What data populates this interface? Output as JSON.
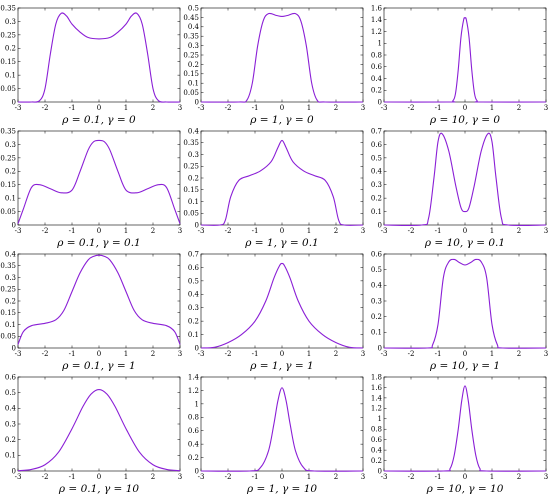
{
  "chart_data": [
    {
      "type": "line",
      "title": "",
      "xlabel": "ρ = 0.1, γ = 0",
      "ylabel": "",
      "xlim": [
        -3,
        3
      ],
      "ylim": [
        0,
        0.35
      ],
      "xticks": [
        -3,
        -2,
        -1,
        0,
        1,
        2,
        3
      ],
      "yticks": [
        0,
        0.05,
        0.1,
        0.15,
        0.2,
        0.25,
        0.3,
        0.35
      ],
      "x": [
        -3,
        -2.5,
        -2.2,
        -2.0,
        -1.8,
        -1.6,
        -1.4,
        -1.2,
        -1.0,
        -0.7,
        -0.4,
        0,
        0.4,
        0.7,
        1.0,
        1.2,
        1.4,
        1.6,
        1.8,
        2.0,
        2.2,
        2.5,
        3
      ],
      "y": [
        0,
        0,
        0.005,
        0.05,
        0.18,
        0.29,
        0.33,
        0.32,
        0.29,
        0.26,
        0.24,
        0.235,
        0.24,
        0.26,
        0.29,
        0.32,
        0.33,
        0.29,
        0.18,
        0.05,
        0.005,
        0,
        0
      ]
    },
    {
      "type": "line",
      "title": "",
      "xlabel": "ρ = 1, γ = 0",
      "ylabel": "",
      "xlim": [
        -3,
        3
      ],
      "ylim": [
        0,
        0.5
      ],
      "xticks": [
        -3,
        -2,
        -1,
        0,
        1,
        2,
        3
      ],
      "yticks": [
        0,
        0.05,
        0.1,
        0.15,
        0.2,
        0.25,
        0.3,
        0.35,
        0.4,
        0.45,
        0.5
      ],
      "x": [
        -3,
        -1.6,
        -1.3,
        -1.1,
        -0.9,
        -0.7,
        -0.5,
        -0.2,
        0,
        0.2,
        0.5,
        0.7,
        0.9,
        1.1,
        1.3,
        1.6,
        3
      ],
      "y": [
        0,
        0,
        0.01,
        0.1,
        0.3,
        0.43,
        0.47,
        0.46,
        0.455,
        0.46,
        0.47,
        0.43,
        0.3,
        0.1,
        0.01,
        0,
        0
      ]
    },
    {
      "type": "line",
      "title": "",
      "xlabel": "ρ = 10, γ = 0",
      "ylabel": "",
      "xlim": [
        -3,
        3
      ],
      "ylim": [
        0,
        1.6
      ],
      "xticks": [
        -3,
        -2,
        -1,
        0,
        1,
        2,
        3
      ],
      "yticks": [
        0,
        0.2,
        0.4,
        0.6,
        0.8,
        1.0,
        1.2,
        1.4,
        1.6
      ],
      "x": [
        -3,
        -0.6,
        -0.45,
        -0.35,
        -0.25,
        -0.15,
        -0.05,
        0,
        0.05,
        0.15,
        0.25,
        0.35,
        0.45,
        0.6,
        3
      ],
      "y": [
        0,
        0,
        0.02,
        0.15,
        0.55,
        1.1,
        1.4,
        1.43,
        1.4,
        1.1,
        0.55,
        0.15,
        0.02,
        0,
        0
      ]
    },
    {
      "type": "line",
      "title": "",
      "xlabel": "ρ = 0.1, γ = 0.1",
      "ylabel": "",
      "xlim": [
        -3,
        3
      ],
      "ylim": [
        0,
        0.35
      ],
      "xticks": [
        -3,
        -2,
        -1,
        0,
        1,
        2,
        3
      ],
      "yticks": [
        0,
        0.05,
        0.1,
        0.15,
        0.2,
        0.25,
        0.3,
        0.35
      ],
      "x": [
        -3,
        -2.8,
        -2.5,
        -2.2,
        -1.8,
        -1.4,
        -1.0,
        -0.7,
        -0.4,
        -0.2,
        0,
        0.2,
        0.4,
        0.7,
        1.0,
        1.4,
        1.8,
        2.2,
        2.5,
        2.8,
        3
      ],
      "y": [
        0.005,
        0.06,
        0.14,
        0.15,
        0.135,
        0.12,
        0.13,
        0.2,
        0.28,
        0.31,
        0.315,
        0.31,
        0.28,
        0.2,
        0.13,
        0.12,
        0.135,
        0.15,
        0.14,
        0.06,
        0.005
      ]
    },
    {
      "type": "line",
      "title": "",
      "xlabel": "ρ = 1, γ = 0.1",
      "ylabel": "",
      "xlim": [
        -3,
        3
      ],
      "ylim": [
        0,
        0.4
      ],
      "xticks": [
        -3,
        -2,
        -1,
        0,
        1,
        2,
        3
      ],
      "yticks": [
        0,
        0.05,
        0.1,
        0.15,
        0.2,
        0.25,
        0.3,
        0.35,
        0.4
      ],
      "x": [
        -3,
        -2.3,
        -2.1,
        -1.9,
        -1.6,
        -1.2,
        -0.8,
        -0.4,
        -0.15,
        0,
        0.15,
        0.4,
        0.8,
        1.2,
        1.6,
        1.9,
        2.1,
        2.3,
        3
      ],
      "y": [
        0,
        0,
        0.02,
        0.12,
        0.19,
        0.21,
        0.23,
        0.27,
        0.33,
        0.36,
        0.33,
        0.27,
        0.23,
        0.21,
        0.19,
        0.12,
        0.02,
        0,
        0
      ]
    },
    {
      "type": "line",
      "title": "",
      "xlabel": "ρ = 10, γ = 0.1",
      "ylabel": "",
      "xlim": [
        -3,
        3
      ],
      "ylim": [
        0,
        0.7
      ],
      "xticks": [
        -3,
        -2,
        -1,
        0,
        1,
        2,
        3
      ],
      "yticks": [
        0,
        0.1,
        0.2,
        0.3,
        0.4,
        0.5,
        0.6,
        0.7
      ],
      "x": [
        -3,
        -1.6,
        -1.35,
        -1.15,
        -1.0,
        -0.85,
        -0.6,
        -0.35,
        -0.15,
        0,
        0.15,
        0.35,
        0.6,
        0.85,
        1.0,
        1.15,
        1.35,
        1.6,
        3
      ],
      "y": [
        0,
        0,
        0.05,
        0.35,
        0.62,
        0.68,
        0.55,
        0.3,
        0.13,
        0.1,
        0.13,
        0.3,
        0.55,
        0.68,
        0.62,
        0.35,
        0.05,
        0,
        0
      ]
    },
    {
      "type": "line",
      "title": "",
      "xlabel": "ρ = 0.1, γ = 1",
      "ylabel": "",
      "xlim": [
        -3,
        3
      ],
      "ylim": [
        0,
        0.4
      ],
      "xticks": [
        -3,
        -2,
        -1,
        0,
        1,
        2,
        3
      ],
      "yticks": [
        0,
        0.05,
        0.1,
        0.15,
        0.2,
        0.25,
        0.3,
        0.35,
        0.4
      ],
      "x": [
        -3,
        -2.8,
        -2.5,
        -2.0,
        -1.6,
        -1.3,
        -1.0,
        -0.7,
        -0.4,
        -0.2,
        0,
        0.2,
        0.4,
        0.7,
        1.0,
        1.3,
        1.6,
        2.0,
        2.5,
        2.8,
        3
      ],
      "y": [
        0.015,
        0.07,
        0.095,
        0.105,
        0.12,
        0.16,
        0.24,
        0.32,
        0.375,
        0.39,
        0.395,
        0.39,
        0.375,
        0.32,
        0.24,
        0.16,
        0.12,
        0.105,
        0.095,
        0.07,
        0.015
      ]
    },
    {
      "type": "line",
      "title": "",
      "xlabel": "ρ = 1, γ = 1",
      "ylabel": "",
      "xlim": [
        -3,
        3
      ],
      "ylim": [
        0,
        0.7
      ],
      "xticks": [
        -3,
        -2,
        -1,
        0,
        1,
        2,
        3
      ],
      "yticks": [
        0,
        0.1,
        0.2,
        0.3,
        0.4,
        0.5,
        0.6,
        0.7
      ],
      "x": [
        -3,
        -2.5,
        -2.0,
        -1.5,
        -1.0,
        -0.6,
        -0.3,
        -0.1,
        0,
        0.1,
        0.3,
        0.6,
        1.0,
        1.5,
        2.0,
        2.5,
        3
      ],
      "y": [
        0,
        0.005,
        0.04,
        0.1,
        0.2,
        0.35,
        0.52,
        0.61,
        0.63,
        0.61,
        0.52,
        0.35,
        0.2,
        0.1,
        0.04,
        0.005,
        0
      ]
    },
    {
      "type": "line",
      "title": "",
      "xlabel": "ρ = 10, γ = 1",
      "ylabel": "",
      "xlim": [
        -3,
        3
      ],
      "ylim": [
        0,
        0.6
      ],
      "xticks": [
        -3,
        -2,
        -1,
        0,
        1,
        2,
        3
      ],
      "yticks": [
        0,
        0.1,
        0.2,
        0.3,
        0.4,
        0.5,
        0.6
      ],
      "x": [
        -3,
        -1.4,
        -1.2,
        -1.0,
        -0.8,
        -0.6,
        -0.4,
        -0.2,
        0,
        0.2,
        0.4,
        0.6,
        0.8,
        1.0,
        1.2,
        1.4,
        3
      ],
      "y": [
        0,
        0,
        0.02,
        0.15,
        0.45,
        0.55,
        0.565,
        0.545,
        0.53,
        0.545,
        0.565,
        0.55,
        0.45,
        0.15,
        0.02,
        0,
        0
      ]
    },
    {
      "type": "line",
      "title": "",
      "xlabel": "ρ = 0.1, γ = 10",
      "ylabel": "",
      "xlim": [
        -3,
        3
      ],
      "ylim": [
        0,
        0.6
      ],
      "xticks": [
        -3,
        -2,
        -1,
        0,
        1,
        2,
        3
      ],
      "yticks": [
        0,
        0.1,
        0.2,
        0.3,
        0.4,
        0.5,
        0.6
      ],
      "x": [
        -3,
        -2.5,
        -2.0,
        -1.5,
        -1.0,
        -0.6,
        -0.3,
        0,
        0.3,
        0.6,
        1.0,
        1.5,
        2.0,
        2.5,
        3
      ],
      "y": [
        0.002,
        0.01,
        0.04,
        0.12,
        0.27,
        0.41,
        0.49,
        0.52,
        0.49,
        0.41,
        0.27,
        0.12,
        0.04,
        0.01,
        0.002
      ]
    },
    {
      "type": "line",
      "title": "",
      "xlabel": "ρ = 1, γ = 10",
      "ylabel": "",
      "xlim": [
        -3,
        3
      ],
      "ylim": [
        0,
        1.4
      ],
      "xticks": [
        -3,
        -2,
        -1,
        0,
        1,
        2,
        3
      ],
      "yticks": [
        0,
        0.2,
        0.4,
        0.6,
        0.8,
        1,
        1.2,
        1.4
      ],
      "x": [
        -3,
        -1.2,
        -0.8,
        -0.5,
        -0.3,
        -0.15,
        0,
        0.15,
        0.3,
        0.5,
        0.8,
        1.2,
        3
      ],
      "y": [
        0,
        0,
        0.05,
        0.3,
        0.7,
        1.05,
        1.24,
        1.05,
        0.7,
        0.3,
        0.05,
        0,
        0
      ]
    },
    {
      "type": "line",
      "title": "",
      "xlabel": "ρ = 10, γ = 10",
      "ylabel": "",
      "xlim": [
        -3,
        3
      ],
      "ylim": [
        0,
        1.8
      ],
      "xticks": [
        -3,
        -2,
        -1,
        0,
        1,
        2,
        3
      ],
      "yticks": [
        0,
        0.2,
        0.4,
        0.6,
        0.8,
        1,
        1.2,
        1.4,
        1.6,
        1.8
      ],
      "x": [
        -3,
        -0.8,
        -0.55,
        -0.4,
        -0.25,
        -0.12,
        0,
        0.12,
        0.25,
        0.4,
        0.55,
        0.8,
        3
      ],
      "y": [
        0,
        0,
        0.05,
        0.3,
        0.8,
        1.35,
        1.63,
        1.35,
        0.8,
        0.3,
        0.05,
        0,
        0
      ]
    }
  ],
  "colors": {
    "curve": "#8a1fd6",
    "axis": "#000000"
  }
}
